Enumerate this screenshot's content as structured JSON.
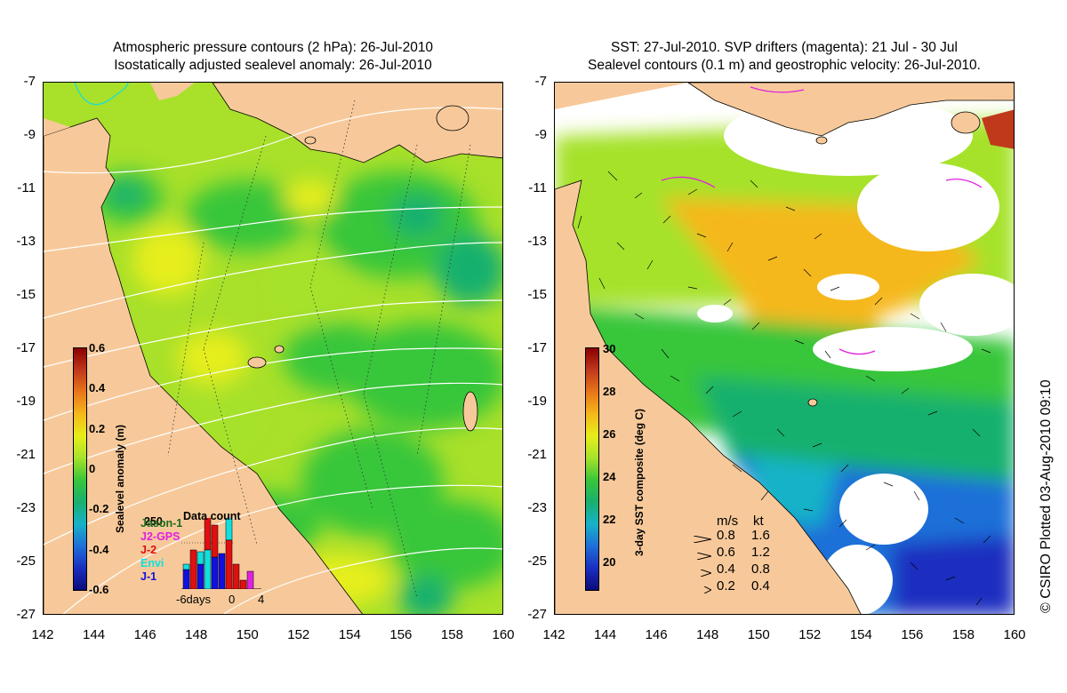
{
  "left_panel": {
    "title_line1": "Atmospheric pressure contours (2 hPa): 26-Jul-2010",
    "title_line2": "Isostatically adjusted sealevel anomaly: 26-Jul-2010",
    "colorbar": {
      "label": "Sealevel anomaly (m)",
      "ticks": [
        "0.6",
        "0.4",
        "0.2",
        "0",
        "-0.2",
        "-0.4",
        "-0.6"
      ],
      "colors": [
        "#8b0000",
        "#c0391b",
        "#e8771a",
        "#f5b81a",
        "#e6ee1a",
        "#a6e22b",
        "#39c63a",
        "#19b06e",
        "#17b2c8",
        "#1e6fd8",
        "#1a2fc0",
        "#0b0b7a"
      ]
    },
    "data_count": {
      "title": "Data count",
      "count": "250",
      "satellites": [
        {
          "name": "Jason-1",
          "color": "#1c6b1c"
        },
        {
          "name": "J2-GPS",
          "color": "#e020e0"
        },
        {
          "name": "J-2",
          "color": "#e01010"
        },
        {
          "name": "Envi",
          "color": "#10e0e0"
        },
        {
          "name": "J-1",
          "color": "#1010e0"
        }
      ],
      "x_ticks": [
        "-6days",
        "0",
        "4"
      ]
    }
  },
  "right_panel": {
    "title_line1": "SST: 27-Jul-2010. SVP drifters (magenta): 21 Jul - 30 Jul",
    "title_line2": "Sealevel contours (0.1 m) and geostrophic velocity: 26-Jul-2010.",
    "colorbar": {
      "label": "3-day SST composite (deg C)",
      "ticks": [
        "30",
        "28",
        "26",
        "24",
        "22",
        "20"
      ],
      "colors": [
        "#8b0000",
        "#c0391b",
        "#e8771a",
        "#f5b81a",
        "#e6ee1a",
        "#a6e22b",
        "#39c63a",
        "#19b06e",
        "#17b2c8",
        "#1e6fd8",
        "#1a2fc0",
        "#0b0b7a"
      ]
    },
    "speed_legend": {
      "header_ms": "m/s",
      "header_kt": "kt",
      "rows": [
        {
          "ms": "0.8",
          "kt": "1.6"
        },
        {
          "ms": "0.6",
          "kt": "1.2"
        },
        {
          "ms": "0.4",
          "kt": "0.8"
        },
        {
          "ms": "0.2",
          "kt": "0.4"
        }
      ]
    }
  },
  "axes": {
    "lat_ticks": [
      "-7",
      "-9",
      "-11",
      "-13",
      "-15",
      "-17",
      "-19",
      "-21",
      "-23",
      "-25",
      "-27"
    ],
    "lon_ticks": [
      "142",
      "144",
      "146",
      "148",
      "150",
      "152",
      "154",
      "156",
      "158",
      "160"
    ]
  },
  "credit": "© CSIRO Plotted 03-Aug-2010 09:10",
  "colors": {
    "land": "#f7c99a",
    "missing_sst": "#ffffff",
    "contour_white": "#ffffff",
    "drifter": "#e020e0"
  }
}
